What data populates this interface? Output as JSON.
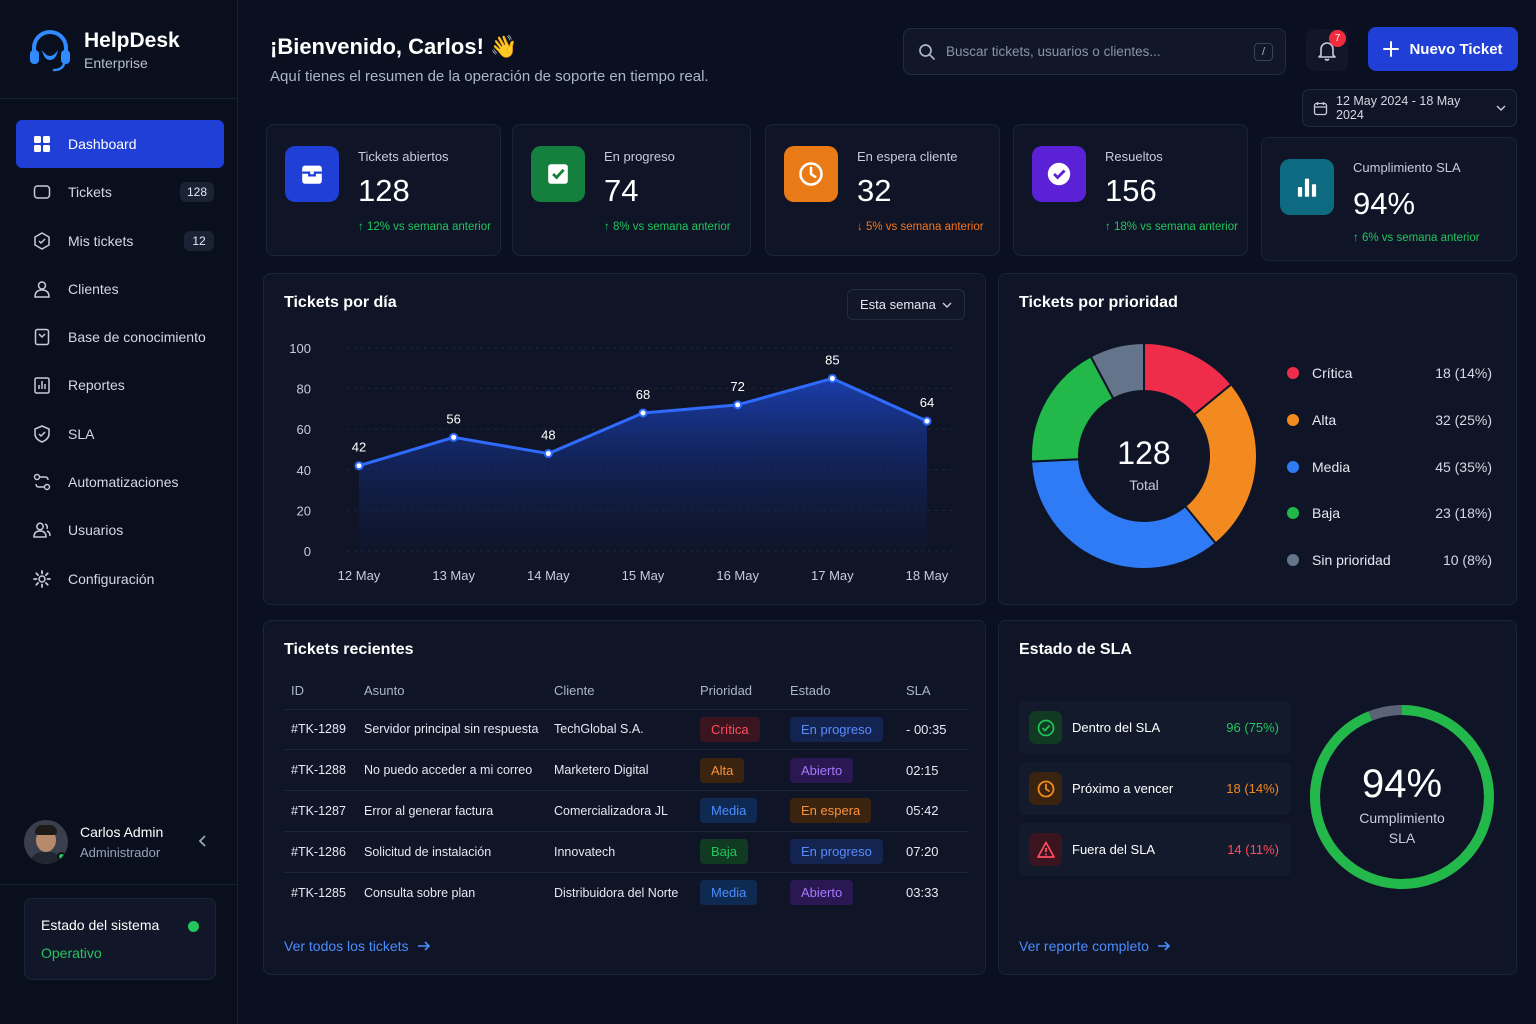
{
  "brand": {
    "name": "HelpDesk",
    "edition": "Enterprise"
  },
  "nav": [
    {
      "label": "Dashboard",
      "badge": "",
      "icon": "grid-icon",
      "active": true
    },
    {
      "label": "Tickets",
      "badge": "128",
      "icon": "ticket-icon"
    },
    {
      "label": "Mis tickets",
      "badge": "12",
      "icon": "my-tickets-icon"
    },
    {
      "label": "Clientes",
      "badge": "",
      "icon": "user-icon"
    },
    {
      "label": "Base de conocimiento",
      "badge": "",
      "icon": "book-icon"
    },
    {
      "label": "Reportes",
      "badge": "",
      "icon": "reports-icon"
    },
    {
      "label": "SLA",
      "badge": "",
      "icon": "shield-icon"
    },
    {
      "label": "Automatizaciones",
      "badge": "",
      "icon": "automation-icon"
    },
    {
      "label": "Usuarios",
      "badge": "",
      "icon": "users-icon"
    },
    {
      "label": "Configuración",
      "badge": "",
      "icon": "gear-icon"
    }
  ],
  "user": {
    "name": "Carlos Admin",
    "role": "Administrador"
  },
  "system": {
    "title": "Estado del sistema",
    "status": "Operativo",
    "status_color": "#22c55e"
  },
  "header": {
    "welcome": "¡Bienvenido, Carlos! 👋",
    "subtitle": "Aquí tienes el resumen de la operación de soporte en tiempo real.",
    "search_placeholder": "Buscar tickets, usuarios o clientes...",
    "search_shortcut": "/",
    "notifications": "7",
    "new_ticket": "Nuevo Ticket",
    "date_range": "12 May 2024 - 18 May 2024"
  },
  "kpis": [
    {
      "label": "Tickets abiertos",
      "value": "128",
      "trend": "↑ 12% vs semana anterior",
      "dir": "up",
      "color": "#1f3fd6",
      "icon": "inbox-icon"
    },
    {
      "label": "En progreso",
      "value": "74",
      "trend": "↑ 8% vs semana anterior",
      "dir": "up",
      "color": "#15803d",
      "icon": "check-square-icon"
    },
    {
      "label": "En espera cliente",
      "value": "32",
      "trend": "↓ 5% vs semana anterior",
      "dir": "down",
      "color": "#ea7a16",
      "icon": "clock-icon"
    },
    {
      "label": "Resueltos",
      "value": "156",
      "trend": "↑ 18% vs semana anterior",
      "dir": "up",
      "color": "#5b21d6",
      "icon": "check-circle-icon"
    },
    {
      "label": "Cumplimiento SLA",
      "value": "94%",
      "trend": "↑ 6% vs semana anterior",
      "dir": "up",
      "color": "#0e6a80",
      "icon": "bar-chart-icon"
    }
  ],
  "daily": {
    "title": "Tickets por día",
    "period": "Esta semana"
  },
  "priority": {
    "title": "Tickets por prioridad",
    "total": "128",
    "total_label": "Total"
  },
  "chart_data": [
    {
      "type": "area",
      "categories": [
        "12 May",
        "13 May",
        "14 May",
        "15 May",
        "16 May",
        "17 May",
        "18 May"
      ],
      "values": [
        42,
        56,
        48,
        68,
        72,
        85,
        64
      ],
      "ylim": [
        0,
        100
      ],
      "yticks": [
        0,
        20,
        40,
        60,
        80,
        100
      ],
      "grid": true,
      "color": "#2f6bff"
    },
    {
      "type": "pie",
      "slices": [
        {
          "label": "Crítica",
          "value": 18,
          "pct": "18 (14%)",
          "color": "#ef2d4a"
        },
        {
          "label": "Alta",
          "value": 32,
          "pct": "32 (25%)",
          "color": "#f28a1f"
        },
        {
          "label": "Media",
          "value": 45,
          "pct": "45 (35%)",
          "color": "#2f7bf5"
        },
        {
          "label": "Baja",
          "value": 23,
          "pct": "23 (18%)",
          "color": "#22b84a"
        },
        {
          "label": "Sin prioridad",
          "value": 10,
          "pct": "10 (8%)",
          "color": "#64748b"
        }
      ]
    }
  ],
  "recent": {
    "title": "Tickets recientes",
    "columns": [
      "ID",
      "Asunto",
      "Cliente",
      "Prioridad",
      "Estado",
      "SLA"
    ],
    "rows": [
      {
        "id": "#TK-1289",
        "subject": "Servidor principal sin respuesta",
        "client": "TechGlobal S.A.",
        "priority": "Crítica",
        "pclass": "p-critica",
        "status": "En progreso",
        "sclass": "s-progreso",
        "sla": "- 00:35",
        "slaclass": "sla-red"
      },
      {
        "id": "#TK-1288",
        "subject": "No puedo acceder a mi correo",
        "client": "Marketero Digital",
        "priority": "Alta",
        "pclass": "p-alta",
        "status": "Abierto",
        "sclass": "s-abierto",
        "sla": "02:15",
        "slaclass": "sla-green"
      },
      {
        "id": "#TK-1287",
        "subject": "Error al generar factura",
        "client": "Comercializadora JL",
        "priority": "Media",
        "pclass": "p-media",
        "status": "En espera",
        "sclass": "s-espera",
        "sla": "05:42",
        "slaclass": "sla-green"
      },
      {
        "id": "#TK-1286",
        "subject": "Solicitud de instalación",
        "client": "Innovatech",
        "priority": "Baja",
        "pclass": "p-baja",
        "status": "En progreso",
        "sclass": "s-progreso",
        "sla": "07:20",
        "slaclass": "sla-green"
      },
      {
        "id": "#TK-1285",
        "subject": "Consulta sobre plan",
        "client": "Distribuidora del Norte",
        "priority": "Media",
        "pclass": "p-media",
        "status": "Abierto",
        "sclass": "s-abierto",
        "sla": "03:33",
        "slaclass": "sla-green"
      }
    ],
    "link": "Ver todos los tickets"
  },
  "sla": {
    "title": "Estado de SLA",
    "items": [
      {
        "label": "Dentro del SLA",
        "value": "96 (75%)",
        "color": "#22c55e",
        "bg": "#113a22",
        "icon": "check-circle-icon"
      },
      {
        "label": "Próximo a vencer",
        "value": "18 (14%)",
        "color": "#f28a1f",
        "bg": "#3a2410",
        "icon": "clock-icon"
      },
      {
        "label": "Fuera del SLA",
        "value": "14 (11%)",
        "color": "#ff4d5e",
        "bg": "#3a1520",
        "icon": "warning-icon"
      }
    ],
    "gauge_value": "94%",
    "gauge_fraction": 0.94,
    "gauge_label_1": "Cumplimiento",
    "gauge_label_2": "SLA",
    "link": "Ver reporte completo"
  }
}
